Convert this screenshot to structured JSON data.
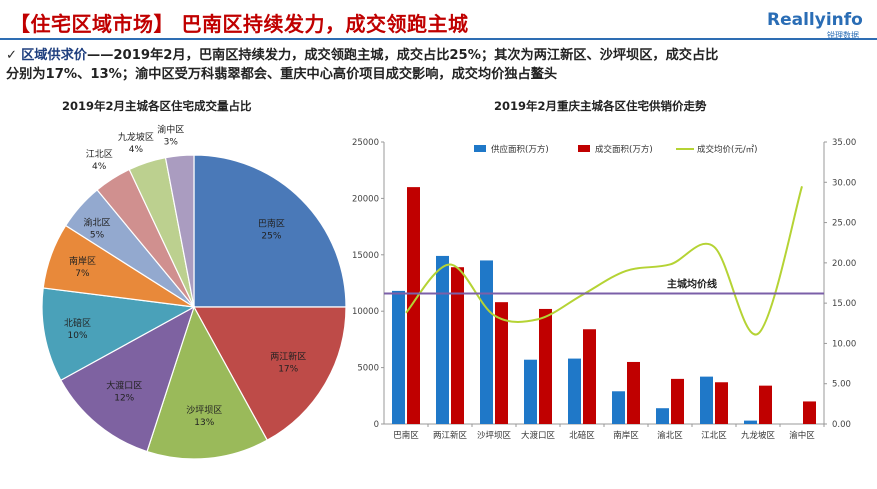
{
  "header": {
    "title": "【住宅区域市场】 巴南区持续发力，成交领跑主城",
    "logo_text": "Reallyinfo",
    "logo_sub": "锐理数据"
  },
  "intro": {
    "check": "✓",
    "lead": "区域供求价",
    "line1": "——2019年2月，巴南区持续发力，成交领跑主城，成交占比25%；其次为两江新区、沙坪坝区，成交占比",
    "line2": "分别为17%、13%；渝中区受万科翡翠都会、重庆中心高价项目成交影响，成交均价独占鳌头"
  },
  "colors": {
    "title_red": "#c00000",
    "brand_blue": "#2e6db3",
    "supply_bar": "#1f78c8",
    "deal_bar": "#c00000",
    "price_line": "#b5d334",
    "avg_line": "#7b5fa8"
  },
  "chart_data": [
    {
      "type": "pie",
      "title": "2019年2月主城各区住宅成交量占比",
      "slices": [
        {
          "label": "巴南区",
          "pct": "25%",
          "value": 25,
          "color": "#4a79b8"
        },
        {
          "label": "两江新区",
          "pct": "17%",
          "value": 17,
          "color": "#be4b48"
        },
        {
          "label": "沙坪坝区",
          "pct": "13%",
          "value": 13,
          "color": "#9aba5a"
        },
        {
          "label": "大渡口区",
          "pct": "12%",
          "value": 12,
          "color": "#7e62a1"
        },
        {
          "label": "北碚区",
          "pct": "10%",
          "value": 10,
          "color": "#4aa1b9"
        },
        {
          "label": "南岸区",
          "pct": "7%",
          "value": 7,
          "color": "#e8893a"
        },
        {
          "label": "渝北区",
          "pct": "5%",
          "value": 5,
          "color": "#93a9cf"
        },
        {
          "label": "江北区",
          "pct": "4%",
          "value": 4,
          "color": "#d0908f"
        },
        {
          "label": "九龙坡区",
          "pct": "4%",
          "value": 4,
          "color": "#bcd08f"
        },
        {
          "label": "渝中区",
          "pct": "3%",
          "value": 3,
          "color": "#aa9cc0"
        }
      ]
    },
    {
      "type": "bar",
      "title": "2019年2月重庆主城各区住宅供销价走势",
      "categories": [
        "巴南区",
        "两江新区",
        "沙坪坝区",
        "大渡口区",
        "北碚区",
        "南岸区",
        "渝北区",
        "江北区",
        "九龙坡区",
        "渝中区"
      ],
      "series": [
        {
          "name": "供应面积(万方)",
          "kind": "bar",
          "axis": "left",
          "values": [
            11800,
            14900,
            14500,
            5700,
            5800,
            2900,
            1400,
            4200,
            300,
            0
          ]
        },
        {
          "name": "成交面积(万方)",
          "kind": "bar",
          "axis": "left",
          "values": [
            21000,
            13900,
            10800,
            10200,
            8400,
            5500,
            4000,
            3700,
            3400,
            2000
          ]
        },
        {
          "name": "成交均价(元/㎡)",
          "kind": "line",
          "axis": "right",
          "values": [
            13.8,
            19.8,
            13.5,
            13.0,
            16.0,
            19.0,
            19.8,
            22.0,
            11.2,
            29.5
          ]
        }
      ],
      "reference_line": {
        "label": "主城均价线",
        "value": 16.2,
        "axis": "right"
      },
      "yticks_left": [
        "0",
        "5000",
        "10000",
        "15000",
        "20000",
        "25000"
      ],
      "yticks_right": [
        "0.00",
        "5.00",
        "10.00",
        "15.00",
        "20.00",
        "25.00",
        "30.00",
        "35.00"
      ],
      "ylim_left": [
        0,
        25000
      ],
      "ylim_right": [
        0,
        35
      ],
      "legend": "top"
    }
  ]
}
